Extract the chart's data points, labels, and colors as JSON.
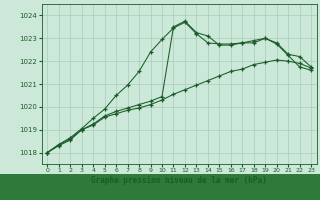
{
  "bg_color": "#cce8d8",
  "grid_color": "#aaccbb",
  "line_color": "#1a5c28",
  "xlabel": "Graphe pression niveau de la mer (hPa)",
  "ylim": [
    1017.5,
    1024.5
  ],
  "xlim": [
    -0.5,
    23.5
  ],
  "yticks": [
    1018,
    1019,
    1020,
    1021,
    1022,
    1023,
    1024
  ],
  "xticks": [
    0,
    1,
    2,
    3,
    4,
    5,
    6,
    7,
    8,
    9,
    10,
    11,
    12,
    13,
    14,
    15,
    16,
    17,
    18,
    19,
    20,
    21,
    22,
    23
  ],
  "series1_x": [
    0,
    1,
    2,
    3,
    4,
    5,
    6,
    7,
    8,
    9,
    10,
    11,
    12,
    13,
    14,
    15,
    16,
    17,
    18,
    19,
    20,
    21,
    22,
    23
  ],
  "series1_y": [
    1018.0,
    1018.35,
    1018.65,
    1019.05,
    1019.5,
    1019.9,
    1020.5,
    1020.95,
    1021.55,
    1022.4,
    1022.95,
    1023.45,
    1023.7,
    1023.2,
    1022.8,
    1022.75,
    1022.75,
    1022.8,
    1022.9,
    1023.0,
    1022.75,
    1022.25,
    1021.75,
    1021.6
  ],
  "series2_x": [
    0,
    1,
    2,
    3,
    4,
    5,
    6,
    7,
    8,
    9,
    10,
    11,
    12,
    13,
    14,
    15,
    16,
    17,
    18,
    19,
    20,
    21,
    22,
    23
  ],
  "series2_y": [
    1018.0,
    1018.3,
    1018.55,
    1019.0,
    1019.2,
    1019.55,
    1019.7,
    1019.85,
    1019.95,
    1020.1,
    1020.3,
    1020.55,
    1020.75,
    1020.95,
    1021.15,
    1021.35,
    1021.55,
    1021.65,
    1021.85,
    1021.95,
    1022.05,
    1022.0,
    1021.9,
    1021.7
  ],
  "series3_x": [
    0,
    1,
    2,
    3,
    4,
    5,
    6,
    7,
    8,
    9,
    10,
    11,
    12,
    13,
    14,
    15,
    16,
    17,
    18,
    19,
    20,
    21,
    22,
    23
  ],
  "series3_y": [
    1018.0,
    1018.35,
    1018.6,
    1019.0,
    1019.25,
    1019.6,
    1019.8,
    1019.95,
    1020.1,
    1020.25,
    1020.45,
    1023.5,
    1023.75,
    1023.25,
    1023.1,
    1022.7,
    1022.7,
    1022.8,
    1022.8,
    1023.0,
    1022.8,
    1022.3,
    1022.2,
    1021.75
  ]
}
